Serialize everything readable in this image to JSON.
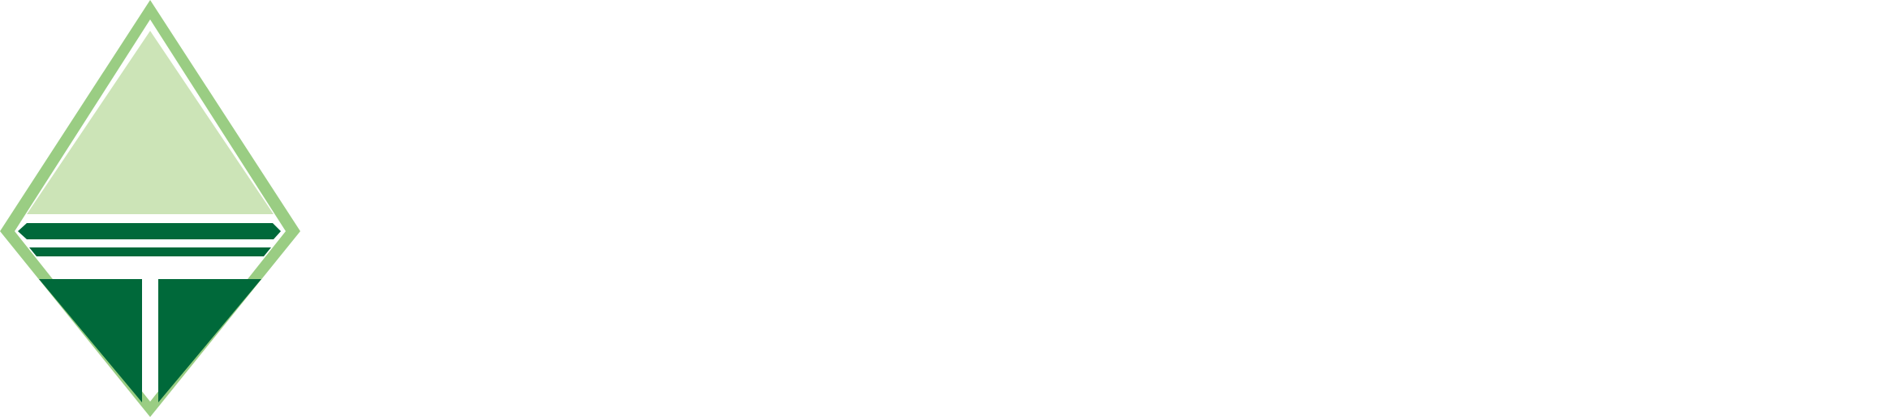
{
  "logo": {
    "icon": "diamond-logo-icon",
    "colors": {
      "outer_frame": "#9ACD83",
      "top_triangle": "#CCE4B7",
      "dark_green": "#00693A",
      "separator": "#FFFFFF"
    }
  }
}
